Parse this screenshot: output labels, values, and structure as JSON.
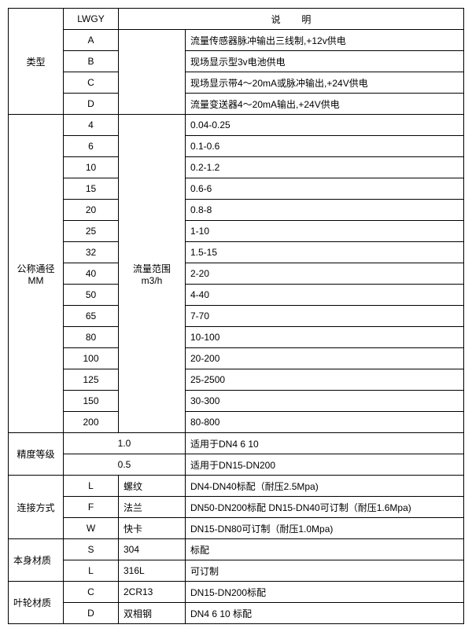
{
  "header": {
    "lwgy": "LWGY",
    "desc_label": "说",
    "desc_label2": "明"
  },
  "type": {
    "label": "类型",
    "rows": [
      {
        "code": "A",
        "desc": "流量传感器脉冲输出三线制,+12v供电"
      },
      {
        "code": "B",
        "desc": "现场显示型3v电池供电"
      },
      {
        "code": "C",
        "desc": "现场显示带4～20mA或脉冲输出,+24V供电"
      },
      {
        "code": "D",
        "desc": "流量变送器4～20mA输出,+24V供电"
      }
    ]
  },
  "dn": {
    "label1": "公称通径",
    "label2": "MM",
    "mid1": "流量范围",
    "mid2": "m3/h",
    "rows": [
      {
        "code": "4",
        "desc": "0.04-0.25"
      },
      {
        "code": "6",
        "desc": "0.1-0.6"
      },
      {
        "code": "10",
        "desc": "0.2-1.2"
      },
      {
        "code": "15",
        "desc": "0.6-6"
      },
      {
        "code": "20",
        "desc": "0.8-8"
      },
      {
        "code": "25",
        "desc": "1-10"
      },
      {
        "code": "32",
        "desc": "1.5-15"
      },
      {
        "code": "40",
        "desc": "2-20"
      },
      {
        "code": "50",
        "desc": "4-40"
      },
      {
        "code": "65",
        "desc": "7-70"
      },
      {
        "code": "80",
        "desc": "10-100"
      },
      {
        "code": "100",
        "desc": "20-200"
      },
      {
        "code": "125",
        "desc": "25-2500"
      },
      {
        "code": "150",
        "desc": "30-300"
      },
      {
        "code": "200",
        "desc": "80-800"
      }
    ]
  },
  "accuracy": {
    "label": "精度等级",
    "rows": [
      {
        "code": "1.0",
        "desc": "适用于DN4  6  10"
      },
      {
        "code": "0.5",
        "desc": "适用于DN15-DN200"
      }
    ]
  },
  "conn": {
    "label": "连接方式",
    "rows": [
      {
        "code": "L",
        "mid": "螺纹",
        "desc": "DN4-DN40标配（耐压2.5Mpa)"
      },
      {
        "code": "F",
        "mid": "法兰",
        "desc": "DN50-DN200标配 DN15-DN40可订制（耐压1.6Mpa)"
      },
      {
        "code": "W",
        "mid": "快卡",
        "desc": "DN15-DN80可订制（耐压1.0Mpa)"
      }
    ]
  },
  "body": {
    "label": "本身材质",
    "rows": [
      {
        "code": "S",
        "mid": "304",
        "desc": "标配"
      },
      {
        "code": "L",
        "mid": "316L",
        "desc": "可订制"
      }
    ]
  },
  "blade": {
    "label": "叶轮材质",
    "rows": [
      {
        "code": "C",
        "mid": "2CR13",
        "desc": "DN15-DN200标配"
      },
      {
        "code": "D",
        "mid": "双相钢",
        "desc": "DN4 6 10 标配"
      }
    ]
  }
}
